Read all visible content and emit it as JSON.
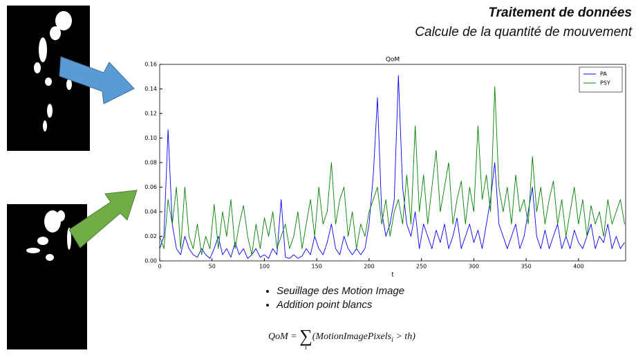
{
  "header": {
    "title": "Traitement de données",
    "subtitle": "Calcule de la quantité de mouvement"
  },
  "bullets": [
    "Seuillage des Motion Image",
    "Addition point blancs"
  ],
  "formula": {
    "lhs": "QoM =",
    "sum": "∑",
    "index": "i",
    "body": "(MotionImagePixels",
    "sub": "i",
    "rest": " > th)"
  },
  "chart_data": {
    "type": "line",
    "title": "QoM",
    "x_label": "t",
    "x": [
      0,
      4,
      8,
      12,
      16,
      20,
      24,
      28,
      32,
      36,
      40,
      44,
      48,
      52,
      56,
      60,
      64,
      68,
      72,
      76,
      80,
      84,
      88,
      92,
      96,
      100,
      104,
      108,
      112,
      116,
      120,
      124,
      128,
      132,
      136,
      140,
      144,
      148,
      152,
      156,
      160,
      164,
      168,
      172,
      176,
      180,
      184,
      188,
      192,
      196,
      200,
      204,
      208,
      212,
      216,
      220,
      224,
      228,
      232,
      236,
      240,
      244,
      248,
      252,
      256,
      260,
      264,
      268,
      272,
      276,
      280,
      284,
      288,
      292,
      296,
      300,
      304,
      308,
      312,
      316,
      320,
      324,
      328,
      332,
      336,
      340,
      344,
      348,
      352,
      356,
      360,
      364,
      368,
      372,
      376,
      380,
      384,
      388,
      392,
      396,
      400,
      404,
      408,
      412,
      416,
      420,
      424,
      428,
      432,
      436,
      440,
      444
    ],
    "series": [
      {
        "name": "PA",
        "color": "#0000ff",
        "values": [
          0.01,
          0.02,
          0.107,
          0.03,
          0.01,
          0.005,
          0.02,
          0.01,
          0.005,
          0.003,
          0.01,
          0.005,
          0.002,
          0.01,
          0.02,
          0.005,
          0.01,
          0.003,
          0.015,
          0.005,
          0.01,
          0.002,
          0.005,
          0.01,
          0.003,
          0.005,
          0.002,
          0.01,
          0.005,
          0.05,
          0.003,
          0.002,
          0.005,
          0.002,
          0.004,
          0.01,
          0.005,
          0.02,
          0.01,
          0.005,
          0.015,
          0.03,
          0.01,
          0.005,
          0.02,
          0.01,
          0.005,
          0.01,
          0.005,
          0.01,
          0.03,
          0.07,
          0.133,
          0.04,
          0.02,
          0.03,
          0.05,
          0.151,
          0.06,
          0.03,
          0.02,
          0.04,
          0.01,
          0.03,
          0.02,
          0.01,
          0.025,
          0.015,
          0.03,
          0.01,
          0.02,
          0.035,
          0.01,
          0.02,
          0.03,
          0.015,
          0.025,
          0.01,
          0.03,
          0.05,
          0.08,
          0.03,
          0.02,
          0.01,
          0.02,
          0.03,
          0.01,
          0.02,
          0.04,
          0.06,
          0.02,
          0.01,
          0.025,
          0.01,
          0.02,
          0.03,
          0.01,
          0.02,
          0.01,
          0.025,
          0.015,
          0.01,
          0.02,
          0.03,
          0.01,
          0.02,
          0.015,
          0.03,
          0.01,
          0.02,
          0.01,
          0.015
        ]
      },
      {
        "name": "PSY",
        "color": "#008000",
        "values": [
          0.02,
          0.01,
          0.05,
          0.03,
          0.06,
          0.01,
          0.06,
          0.02,
          0.01,
          0.03,
          0.005,
          0.02,
          0.01,
          0.046,
          0.01,
          0.04,
          0.02,
          0.05,
          0.01,
          0.03,
          0.045,
          0.02,
          0.005,
          0.03,
          0.01,
          0.035,
          0.02,
          0.04,
          0.01,
          0.02,
          0.03,
          0.01,
          0.02,
          0.04,
          0.01,
          0.03,
          0.05,
          0.02,
          0.06,
          0.03,
          0.04,
          0.08,
          0.03,
          0.05,
          0.06,
          0.02,
          0.04,
          0.01,
          0.03,
          0.02,
          0.04,
          0.05,
          0.06,
          0.03,
          0.05,
          0.02,
          0.04,
          0.05,
          0.03,
          0.07,
          0.03,
          0.11,
          0.04,
          0.07,
          0.03,
          0.06,
          0.09,
          0.04,
          0.06,
          0.08,
          0.03,
          0.05,
          0.065,
          0.03,
          0.06,
          0.04,
          0.11,
          0.05,
          0.07,
          0.04,
          0.142,
          0.06,
          0.04,
          0.06,
          0.03,
          0.07,
          0.04,
          0.05,
          0.03,
          0.085,
          0.04,
          0.06,
          0.03,
          0.05,
          0.065,
          0.03,
          0.05,
          0.02,
          0.04,
          0.06,
          0.03,
          0.05,
          0.02,
          0.045,
          0.03,
          0.04,
          0.02,
          0.05,
          0.03,
          0.04,
          0.05,
          0.03
        ]
      }
    ],
    "xlim": [
      0,
      445
    ],
    "xticks": [
      0,
      50,
      100,
      150,
      200,
      250,
      300,
      350,
      400
    ],
    "ylim": [
      0,
      0.16
    ],
    "yticks": [
      {
        "value": 0,
        "label": "0.00"
      },
      {
        "value": 0.02,
        "label": "0.02"
      },
      {
        "value": 0.04,
        "label": "0.04"
      },
      {
        "value": 0.06,
        "label": "0.06"
      },
      {
        "value": 0.08,
        "label": "0.08"
      },
      {
        "value": 0.1,
        "label": "0.10"
      },
      {
        "value": 0.12,
        "label": "0.12"
      },
      {
        "value": 0.14,
        "label": "0.14"
      },
      {
        "value": 0.16,
        "label": "0.16"
      }
    ],
    "legend": "upper right"
  }
}
